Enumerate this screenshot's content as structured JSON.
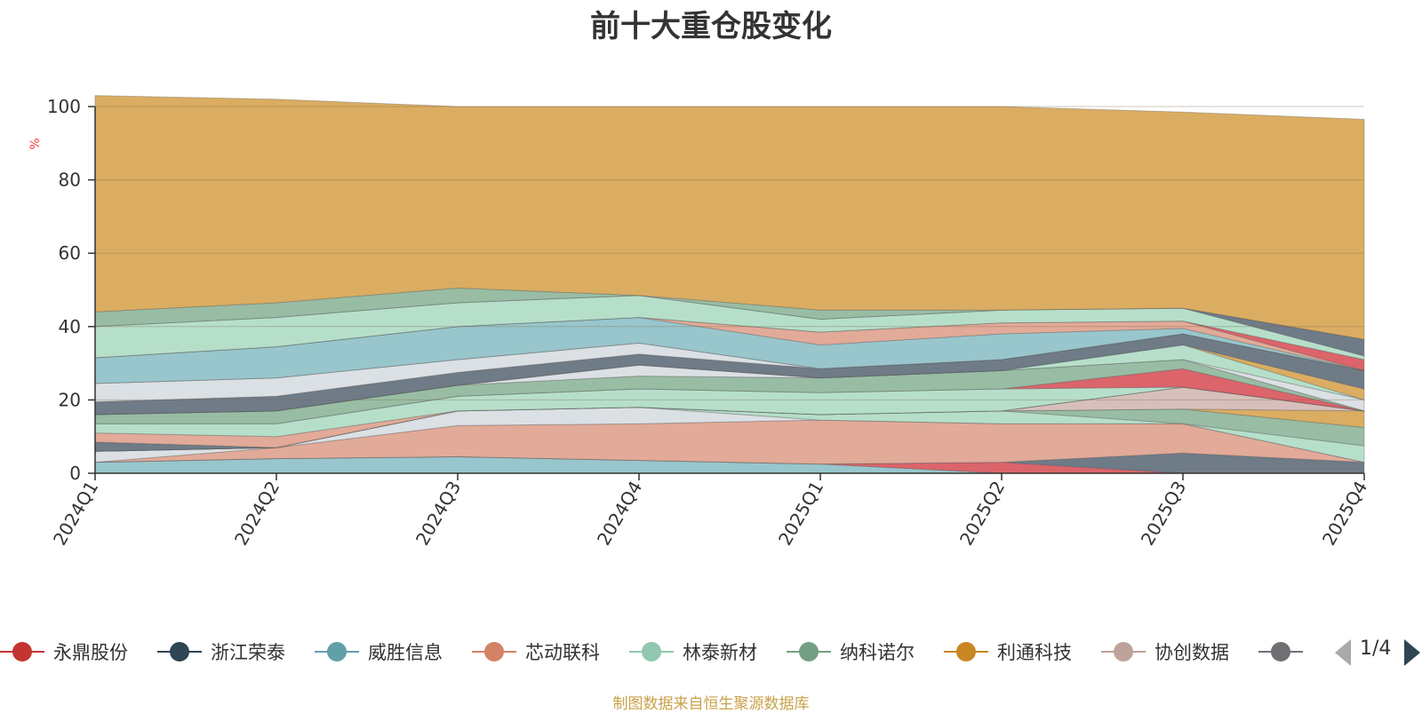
{
  "chart_data": {
    "type": "area",
    "title": "前十大重仓股变化",
    "ylabel": "%",
    "ylim": [
      0,
      100
    ],
    "yticks": [
      0,
      20,
      40,
      60,
      80,
      100
    ],
    "stacked": true,
    "grid": true,
    "categories": [
      "2024Q1",
      "2024Q2",
      "2024Q3",
      "2024Q4",
      "2025Q1",
      "2025Q2",
      "2025Q3",
      "2025Q4"
    ],
    "series": [
      {
        "color": "#8fc1c8",
        "values": [
          3.0,
          4.0,
          4.5,
          3.5,
          2.5,
          0,
          0,
          0
        ]
      },
      {
        "color": "#d9575e",
        "values": [
          0,
          0,
          0,
          0,
          0,
          3.0,
          0,
          0
        ]
      },
      {
        "color": "#63707d",
        "values": [
          0,
          0,
          0,
          0,
          0,
          0,
          5.5,
          3.0
        ]
      },
      {
        "color": "#e0a38f",
        "values": [
          0,
          3.0,
          8.5,
          10.0,
          12.0,
          10.5,
          8.0,
          0
        ]
      },
      {
        "color": "#d8dde2",
        "values": [
          3.0,
          0,
          4.0,
          4.5,
          0,
          0,
          0,
          0
        ]
      },
      {
        "color": "#b0dcc6",
        "values": [
          0,
          0,
          0,
          0,
          1.5,
          3.5,
          0,
          4.5
        ]
      },
      {
        "color": "#8fb79c",
        "values": [
          0,
          0,
          0,
          0,
          0,
          0,
          4.0,
          5.0
        ]
      },
      {
        "color": "#d8a655",
        "values": [
          0,
          0,
          0,
          0,
          0,
          0,
          0,
          4.5
        ]
      },
      {
        "color": "#d4bbb5",
        "values": [
          0,
          0,
          0,
          0,
          0,
          0,
          6.0,
          0
        ]
      },
      {
        "color": "#63707d",
        "values": [
          2.5,
          0,
          0,
          0,
          0,
          0,
          0,
          0
        ]
      },
      {
        "color": "#e0a38f",
        "values": [
          2.5,
          3.0,
          0,
          0,
          0,
          0,
          0,
          0
        ]
      },
      {
        "color": "#b0dcc6",
        "values": [
          2.5,
          3.5,
          4.0,
          5.0,
          6.0,
          6.0,
          0,
          0
        ]
      },
      {
        "color": "#d9575e",
        "values": [
          0,
          0,
          0,
          0,
          0,
          0,
          5.0,
          0
        ]
      },
      {
        "color": "#8fb79c",
        "values": [
          2.5,
          3.5,
          3.0,
          3.5,
          4.0,
          5.0,
          2.5,
          0
        ]
      },
      {
        "color": "#d8dde2",
        "values": [
          0,
          0,
          0,
          3.0,
          0,
          0,
          0,
          3.0
        ]
      },
      {
        "color": "#b0dcc6",
        "values": [
          0,
          0,
          0,
          0,
          0,
          0,
          4.0,
          0
        ]
      },
      {
        "color": "#d8a655",
        "values": [
          0,
          0,
          0,
          0,
          0,
          0,
          0,
          3.0
        ]
      },
      {
        "color": "#63707d",
        "values": [
          3.5,
          4.0,
          3.5,
          3.0,
          2.5,
          3.0,
          3.0,
          5.0
        ]
      },
      {
        "color": "#d8dde2",
        "values": [
          5.0,
          5.0,
          3.5,
          3.0,
          0,
          0,
          0,
          0
        ]
      },
      {
        "color": "#e0a38f",
        "values": [
          0,
          0,
          0,
          0,
          0,
          0,
          0,
          0
        ]
      },
      {
        "color": "#8fc1c8",
        "values": [
          7.0,
          8.5,
          9.0,
          7.0,
          6.5,
          7.0,
          1.5,
          0
        ]
      },
      {
        "color": "#e0a38f",
        "values": [
          0,
          0,
          0,
          0,
          3.5,
          3.0,
          2.0,
          0
        ]
      },
      {
        "color": "#d9575e",
        "values": [
          0,
          0,
          0,
          0,
          0,
          0,
          0,
          3.0
        ]
      },
      {
        "color": "#b0dcc6",
        "values": [
          8.5,
          8.0,
          6.5,
          6.0,
          3.5,
          3.5,
          3.5,
          1.0
        ]
      },
      {
        "color": "#63707d",
        "values": [
          0,
          0,
          0,
          0,
          0,
          0,
          0,
          4.5
        ]
      },
      {
        "color": "#8fb79c",
        "values": [
          4.0,
          4.0,
          4.0,
          0,
          2.5,
          0,
          0,
          0
        ]
      },
      {
        "color": "#d8a655",
        "values": [
          59.0,
          55.5,
          49.5,
          51.5,
          55.5,
          55.5,
          53.5,
          60.0
        ]
      }
    ]
  },
  "legend": {
    "items": [
      {
        "label": "永鼎股份",
        "color": "#c23531"
      },
      {
        "label": "浙江荣泰",
        "color": "#2f4554"
      },
      {
        "label": "威胜信息",
        "color": "#61a0a8"
      },
      {
        "label": "芯动联科",
        "color": "#d48265"
      },
      {
        "label": "林泰新材",
        "color": "#91c7ae"
      },
      {
        "label": "纳科诺尔",
        "color": "#749f83"
      },
      {
        "label": "利通科技",
        "color": "#ca8622"
      },
      {
        "label": "协创数据",
        "color": "#bda29a"
      },
      {
        "label": "",
        "color": "#6e7074"
      }
    ],
    "page": "1/4"
  },
  "footer": {
    "source": "制图数据来自恒生聚源数据库"
  }
}
